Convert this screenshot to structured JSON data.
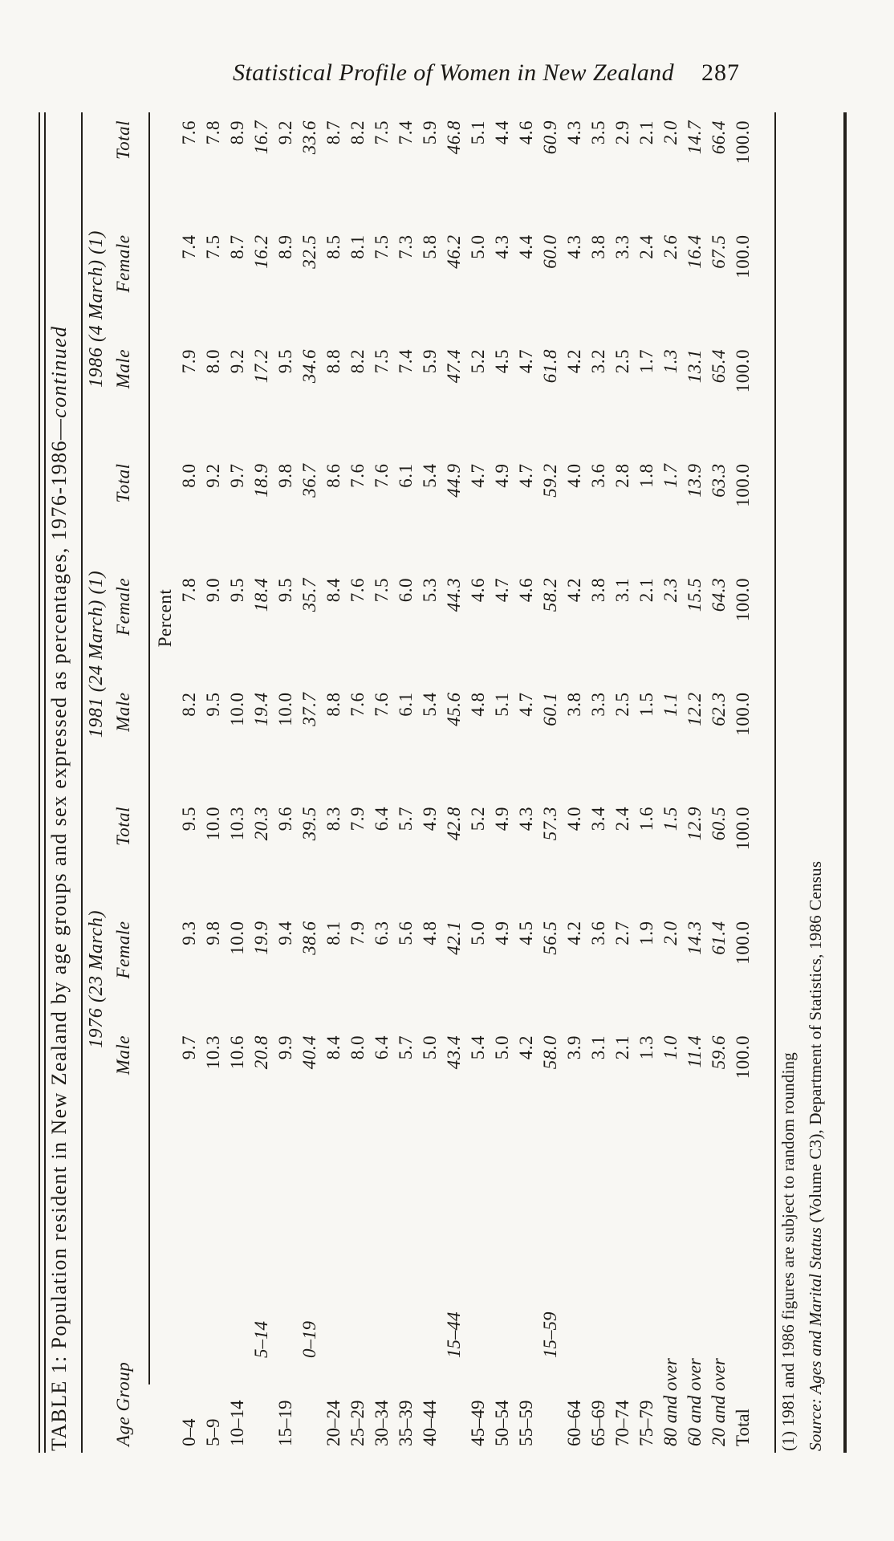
{
  "page": {
    "running_header": "Statistical Profile of Women in New Zealand",
    "page_number": "287",
    "colors": {
      "paper": "#f8f7f3",
      "ink": "#1c1a16"
    }
  },
  "table": {
    "title_main": "TABLE 1: Population resident in New Zealand by age groups and sex expressed as percentages, 1976-1986—",
    "title_continued": "continued",
    "age_group_header": "Age Group",
    "unit_label": "Percent",
    "groups": [
      {
        "year": "1976 (23 March)",
        "cols": [
          "Male",
          "Female",
          "Total"
        ]
      },
      {
        "year": "1981 (24 March) (1)",
        "cols": [
          "Male",
          "Female",
          "Total"
        ]
      },
      {
        "year": "1986 (4 March) (1)",
        "cols": [
          "Male",
          "Female",
          "Total"
        ]
      }
    ],
    "rows": [
      {
        "label": "0–4",
        "style": "plain",
        "values": [
          "9.7",
          "9.3",
          "9.5",
          "8.2",
          "7.8",
          "8.0",
          "7.9",
          "7.4",
          "7.6"
        ]
      },
      {
        "label": "5–9",
        "style": "plain",
        "values": [
          "10.3",
          "9.8",
          "10.0",
          "9.5",
          "9.0",
          "9.2",
          "8.0",
          "7.5",
          "7.8"
        ]
      },
      {
        "label": "10–14",
        "style": "plain",
        "values": [
          "10.6",
          "10.0",
          "10.3",
          "10.0",
          "9.5",
          "9.7",
          "9.2",
          "8.7",
          "8.9"
        ]
      },
      {
        "label": "5–14",
        "style": "subtotal",
        "values": [
          "20.8",
          "19.9",
          "20.3",
          "19.4",
          "18.4",
          "18.9",
          "17.2",
          "16.2",
          "16.7"
        ]
      },
      {
        "label": "15–19",
        "style": "plain",
        "values": [
          "9.9",
          "9.4",
          "9.6",
          "10.0",
          "9.5",
          "9.8",
          "9.5",
          "8.9",
          "9.2"
        ]
      },
      {
        "label": "0–19",
        "style": "subtotal",
        "values": [
          "40.4",
          "38.6",
          "39.5",
          "37.7",
          "35.7",
          "36.7",
          "34.6",
          "32.5",
          "33.6"
        ]
      },
      {
        "label": "20–24",
        "style": "plain",
        "values": [
          "8.4",
          "8.1",
          "8.3",
          "8.8",
          "8.4",
          "8.6",
          "8.8",
          "8.5",
          "8.7"
        ]
      },
      {
        "label": "25–29",
        "style": "plain",
        "values": [
          "8.0",
          "7.9",
          "7.9",
          "7.6",
          "7.6",
          "7.6",
          "8.2",
          "8.1",
          "8.2"
        ]
      },
      {
        "label": "30–34",
        "style": "plain",
        "values": [
          "6.4",
          "6.3",
          "6.4",
          "7.6",
          "7.5",
          "7.6",
          "7.5",
          "7.5",
          "7.5"
        ]
      },
      {
        "label": "35–39",
        "style": "plain",
        "values": [
          "5.7",
          "5.6",
          "5.7",
          "6.1",
          "6.0",
          "6.1",
          "7.4",
          "7.3",
          "7.4"
        ]
      },
      {
        "label": "40–44",
        "style": "plain",
        "values": [
          "5.0",
          "4.8",
          "4.9",
          "5.4",
          "5.3",
          "5.4",
          "5.9",
          "5.8",
          "5.9"
        ]
      },
      {
        "label": "15–44",
        "style": "subtotal",
        "values": [
          "43.4",
          "42.1",
          "42.8",
          "45.6",
          "44.3",
          "44.9",
          "47.4",
          "46.2",
          "46.8"
        ]
      },
      {
        "label": "45–49",
        "style": "plain",
        "values": [
          "5.4",
          "5.0",
          "5.2",
          "4.8",
          "4.6",
          "4.7",
          "5.2",
          "5.0",
          "5.1"
        ]
      },
      {
        "label": "50–54",
        "style": "plain",
        "values": [
          "5.0",
          "4.9",
          "4.9",
          "5.1",
          "4.7",
          "4.9",
          "4.5",
          "4.3",
          "4.4"
        ]
      },
      {
        "label": "55–59",
        "style": "plain",
        "values": [
          "4.2",
          "4.5",
          "4.3",
          "4.7",
          "4.6",
          "4.7",
          "4.7",
          "4.4",
          "4.6"
        ]
      },
      {
        "label": "15–59",
        "style": "subtotal",
        "values": [
          "58.0",
          "56.5",
          "57.3",
          "60.1",
          "58.2",
          "59.2",
          "61.8",
          "60.0",
          "60.9"
        ]
      },
      {
        "label": "60–64",
        "style": "plain",
        "values": [
          "3.9",
          "4.2",
          "4.0",
          "3.8",
          "4.2",
          "4.0",
          "4.2",
          "4.3",
          "4.3"
        ]
      },
      {
        "label": "65–69",
        "style": "plain",
        "values": [
          "3.1",
          "3.6",
          "3.4",
          "3.3",
          "3.8",
          "3.6",
          "3.2",
          "3.8",
          "3.5"
        ]
      },
      {
        "label": "70–74",
        "style": "plain",
        "values": [
          "2.1",
          "2.7",
          "2.4",
          "2.5",
          "3.1",
          "2.8",
          "2.5",
          "3.3",
          "2.9"
        ]
      },
      {
        "label": "75–79",
        "style": "plain",
        "values": [
          "1.3",
          "1.9",
          "1.6",
          "1.5",
          "2.1",
          "1.8",
          "1.7",
          "2.4",
          "2.1"
        ]
      },
      {
        "label": "80 and over",
        "style": "summary",
        "values": [
          "1.0",
          "2.0",
          "1.5",
          "1.1",
          "2.3",
          "1.7",
          "1.3",
          "2.6",
          "2.0"
        ]
      },
      {
        "label": "60 and over",
        "style": "summary",
        "values": [
          "11.4",
          "14.3",
          "12.9",
          "12.2",
          "15.5",
          "13.9",
          "13.1",
          "16.4",
          "14.7"
        ]
      },
      {
        "label": "20 and over",
        "style": "summary",
        "values": [
          "59.6",
          "61.4",
          "60.5",
          "62.3",
          "64.3",
          "63.3",
          "65.4",
          "67.5",
          "66.4"
        ]
      },
      {
        "label": "Total",
        "style": "plain",
        "values": [
          "100.0",
          "100.0",
          "100.0",
          "100.0",
          "100.0",
          "100.0",
          "100.0",
          "100.0",
          "100.0"
        ]
      }
    ],
    "footnote1": "(1) 1981 and 1986 figures are subject to random rounding",
    "source_italic": "Source: Ages and Marital Status",
    "source_roman": " (Volume C3), Department of Statistics, 1986 Census"
  }
}
